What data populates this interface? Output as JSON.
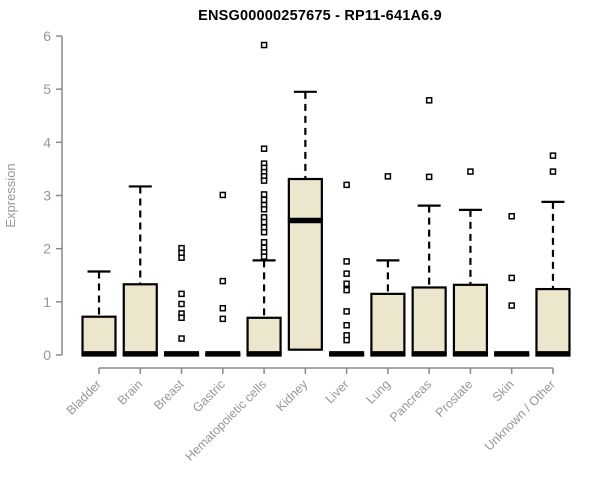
{
  "chart_data": {
    "type": "boxplot",
    "title": "ENSG00000257675 - RP11-641A6.9",
    "xlabel": "",
    "ylabel": "Expression",
    "ylim": [
      0,
      6
    ],
    "y_ticks": [
      0,
      1,
      2,
      3,
      4,
      5,
      6
    ],
    "grid": false,
    "legend": "none",
    "categories": [
      "Bladder",
      "Brain",
      "Breast",
      "Gastric",
      "Hematopoietic cells",
      "Kidney",
      "Liver",
      "Lung",
      "Pancreas",
      "Prostate",
      "Skin",
      "Unknown / Other"
    ],
    "series": [
      {
        "name": "Bladder",
        "q1": 0,
        "median": 0.02,
        "q3": 0.72,
        "whisker_low": 0,
        "whisker_high": 1.57,
        "outliers": []
      },
      {
        "name": "Brain",
        "q1": 0,
        "median": 0.02,
        "q3": 1.33,
        "whisker_low": 0,
        "whisker_high": 3.17,
        "outliers": []
      },
      {
        "name": "Breast",
        "q1": 0,
        "median": 0.02,
        "q3": 0.02,
        "whisker_low": 0,
        "whisker_high": 0.02,
        "outliers": [
          2.01,
          1.92,
          1.83,
          1.15,
          0.96,
          0.78,
          0.7,
          0.31
        ]
      },
      {
        "name": "Gastric",
        "q1": 0,
        "median": 0.02,
        "q3": 0.02,
        "whisker_low": 0,
        "whisker_high": 0.02,
        "outliers": [
          3.01,
          1.39,
          0.88,
          0.68
        ]
      },
      {
        "name": "Hematopoietic cells",
        "q1": 0,
        "median": 0.02,
        "q3": 0.7,
        "whisker_low": 0,
        "whisker_high": 1.78,
        "outliers": [
          5.83,
          3.88,
          3.6,
          3.52,
          3.44,
          3.36,
          3.28,
          3.02,
          2.92,
          2.82,
          2.74,
          2.59,
          2.5,
          2.4,
          2.31,
          2.12,
          2.02,
          1.93,
          1.85
        ]
      },
      {
        "name": "Kidney",
        "q1": 0.1,
        "median": 2.53,
        "q3": 3.31,
        "whisker_low": 0.1,
        "whisker_high": 4.95,
        "outliers": []
      },
      {
        "name": "Liver",
        "q1": 0,
        "median": 0.02,
        "q3": 0.02,
        "whisker_low": 0,
        "whisker_high": 0.02,
        "outliers": [
          3.2,
          1.76,
          1.53,
          1.34,
          1.22,
          0.82,
          0.56,
          0.37,
          0.28
        ]
      },
      {
        "name": "Lung",
        "q1": 0,
        "median": 0.02,
        "q3": 1.15,
        "whisker_low": 0,
        "whisker_high": 1.78,
        "outliers": [
          3.36
        ]
      },
      {
        "name": "Pancreas",
        "q1": 0,
        "median": 0.02,
        "q3": 1.27,
        "whisker_low": 0,
        "whisker_high": 2.81,
        "outliers": [
          4.79,
          3.35
        ]
      },
      {
        "name": "Prostate",
        "q1": 0,
        "median": 0.02,
        "q3": 1.32,
        "whisker_low": 0,
        "whisker_high": 2.73,
        "outliers": [
          3.45
        ]
      },
      {
        "name": "Skin",
        "q1": 0,
        "median": 0.02,
        "q3": 0.02,
        "whisker_low": 0,
        "whisker_high": 0.02,
        "outliers": [
          2.61,
          1.45,
          0.93
        ]
      },
      {
        "name": "Unknown / Other",
        "q1": 0,
        "median": 0.02,
        "q3": 1.24,
        "whisker_low": 0,
        "whisker_high": 2.88,
        "outliers": [
          3.75,
          3.45
        ]
      }
    ],
    "colors": {
      "box_fill": "#ece6cd",
      "box_stroke": "#000000",
      "median": "#000000",
      "whisker": "#000000",
      "outlier_stroke": "#000000",
      "outlier_fill": "#ffffff",
      "axis_line": "#8a8a8a",
      "axis_text": "#979797",
      "title": "#000000",
      "background": "#ffffff"
    }
  }
}
